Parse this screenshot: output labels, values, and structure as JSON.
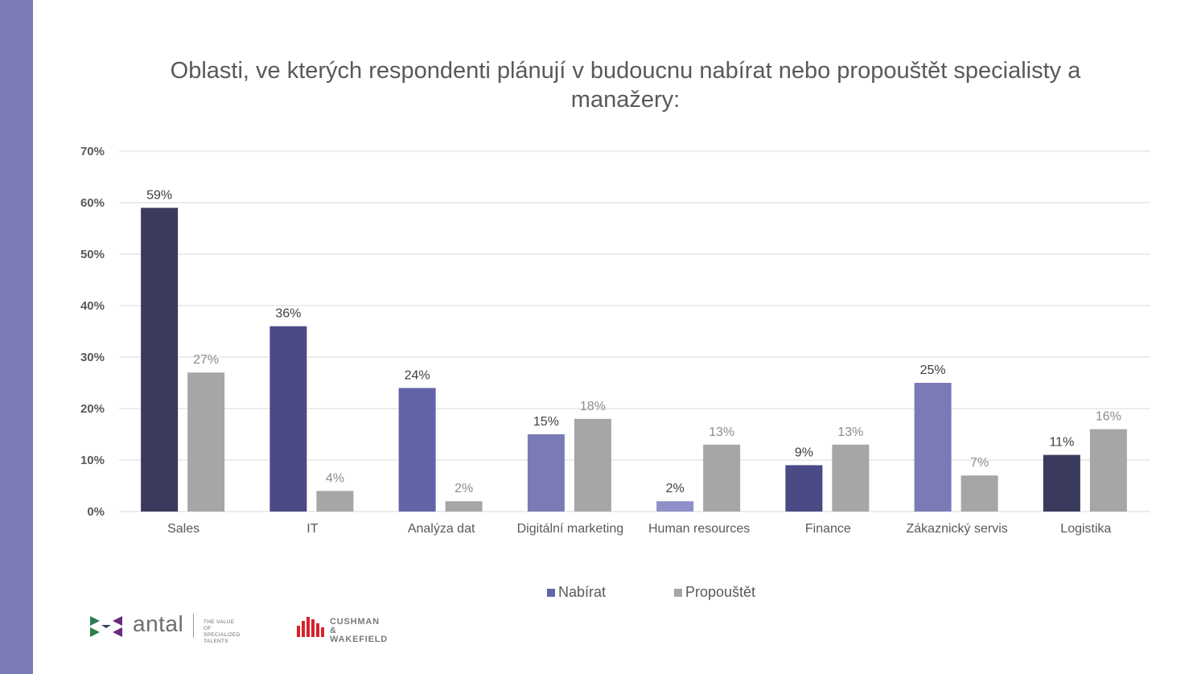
{
  "chart_data": {
    "type": "bar",
    "title": "Oblasti, ve kterých respondenti plánují v budoucnu nabírat nebo propouštět specialisty a manažery:",
    "categories": [
      "Sales",
      "IT",
      "Analýza dat",
      "Digitální marketing",
      "Human resources",
      "Finance",
      "Zákaznický servis",
      "Logistika"
    ],
    "series": [
      {
        "name": "Nabírat",
        "values": [
          59,
          36,
          24,
          15,
          2,
          9,
          25,
          11
        ],
        "labels": [
          "59%",
          "36%",
          "24%",
          "15%",
          "2%",
          "9%",
          "25%",
          "11%"
        ]
      },
      {
        "name": "Propouštět",
        "values": [
          27,
          4,
          2,
          18,
          13,
          13,
          7,
          16
        ],
        "labels": [
          "27%",
          "4%",
          "2%",
          "18%",
          "13%",
          "13%",
          "7%",
          "16%"
        ]
      }
    ],
    "ylim": [
      0,
      70
    ],
    "yticks": [
      0,
      10,
      20,
      30,
      40,
      50,
      60,
      70
    ],
    "ytick_labels": [
      "0%",
      "10%",
      "20%",
      "30%",
      "40%",
      "50%",
      "60%",
      "70%"
    ],
    "grid": true,
    "legend_position": "bottom"
  },
  "colors": {
    "nabirat_bars": [
      "#3a3a5f",
      "#4a4a85",
      "#6264a7",
      "#7a7bb6",
      "#8f90c8",
      "#4a4a85",
      "#7a7bb6",
      "#3a3a5f"
    ],
    "nabirat_legend": "#6264a7",
    "propoustet": "#a6a6a6",
    "side_strip": "#7a7bb6",
    "gridline": "#d9d9d9",
    "text": "#595959",
    "label_dark": "#404040",
    "label_gray": "#8c8c8c"
  },
  "logos": {
    "antal_word": "antal",
    "antal_tagline": [
      "THE VALUE OF",
      "SPECIALIZED TALENTS"
    ],
    "cw_word": [
      "CUSHMAN &",
      "WAKEFIELD"
    ]
  }
}
